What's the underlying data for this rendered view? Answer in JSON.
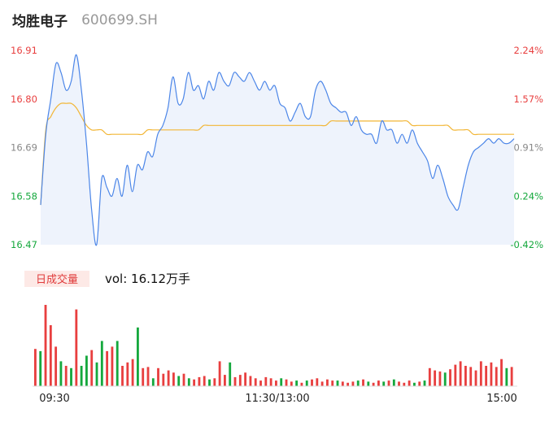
{
  "header": {
    "name": "均胜电子",
    "code": "600699.SH"
  },
  "colors": {
    "up": "#e83f3f",
    "down": "#15a83d",
    "flat": "#888888",
    "price_line": "#4c86e8",
    "avg_line": "#f2b636",
    "area": "#eef3fc"
  },
  "chart_data": {
    "type": "line",
    "price_axis": {
      "ticks": [
        16.91,
        16.8,
        16.69,
        16.58,
        16.47
      ],
      "tick_labels": [
        "16.91",
        "16.80",
        "16.69",
        "16.58",
        "16.47"
      ],
      "ylim": [
        16.47,
        16.91
      ]
    },
    "pct_axis": {
      "tick_labels": [
        "2.24%",
        "1.57%",
        "0.91%",
        "0.24%",
        "-0.42%"
      ]
    },
    "x_tick_labels": [
      "09:30",
      "11:30/13:00",
      "15:00"
    ],
    "volume_badge": "日成交量",
    "volume_text": "vol: 16.12万手",
    "series": [
      {
        "kind": "price",
        "values": [
          16.56,
          16.72,
          16.8,
          16.88,
          16.86,
          16.82,
          16.84,
          16.9,
          16.82,
          16.7,
          16.55,
          16.47,
          16.62,
          16.6,
          16.58,
          16.62,
          16.58,
          16.65,
          16.59,
          16.65,
          16.64,
          16.68,
          16.67,
          16.72,
          16.74,
          16.78,
          16.85,
          16.79,
          16.8,
          16.86,
          16.82,
          16.83,
          16.8,
          16.84,
          16.82,
          16.86,
          16.84,
          16.83,
          16.86,
          16.85,
          16.84,
          16.86,
          16.84,
          16.82,
          16.84,
          16.82,
          16.83,
          16.79,
          16.78,
          16.75,
          16.77,
          16.79,
          16.76,
          16.76,
          16.82,
          16.84,
          16.82,
          16.79,
          16.78,
          16.77,
          16.77,
          16.74,
          16.76,
          16.73,
          16.72,
          16.72,
          16.7,
          16.75,
          16.73,
          16.73,
          16.7,
          16.72,
          16.7,
          16.73,
          16.7,
          16.68,
          16.66,
          16.62,
          16.65,
          16.62,
          16.58,
          16.56,
          16.55,
          16.6,
          16.65,
          16.68,
          16.69,
          16.7,
          16.71,
          16.7,
          16.71,
          16.7,
          16.7,
          16.71
        ]
      },
      {
        "kind": "average",
        "values": [
          16.56,
          16.73,
          16.76,
          16.78,
          16.79,
          16.79,
          16.79,
          16.78,
          16.76,
          16.74,
          16.73,
          16.73,
          16.73,
          16.72,
          16.72,
          16.72,
          16.72,
          16.72,
          16.72,
          16.72,
          16.72,
          16.73,
          16.73,
          16.73,
          16.73,
          16.73,
          16.73,
          16.73,
          16.73,
          16.73,
          16.73,
          16.73,
          16.74,
          16.74,
          16.74,
          16.74,
          16.74,
          16.74,
          16.74,
          16.74,
          16.74,
          16.74,
          16.74,
          16.74,
          16.74,
          16.74,
          16.74,
          16.74,
          16.74,
          16.74,
          16.74,
          16.74,
          16.74,
          16.74,
          16.74,
          16.74,
          16.74,
          16.75,
          16.75,
          16.75,
          16.75,
          16.75,
          16.75,
          16.75,
          16.75,
          16.75,
          16.75,
          16.75,
          16.75,
          16.75,
          16.75,
          16.75,
          16.75,
          16.74,
          16.74,
          16.74,
          16.74,
          16.74,
          16.74,
          16.74,
          16.74,
          16.73,
          16.73,
          16.73,
          16.73,
          16.72,
          16.72,
          16.72,
          16.72,
          16.72,
          16.72,
          16.72,
          16.72,
          16.72
        ]
      }
    ],
    "volume_bars": [
      {
        "v": 33,
        "d": 1
      },
      {
        "v": 31,
        "d": -1
      },
      {
        "v": 72,
        "d": 1
      },
      {
        "v": 54,
        "d": 1
      },
      {
        "v": 35,
        "d": 1
      },
      {
        "v": 22,
        "d": -1
      },
      {
        "v": 18,
        "d": 1
      },
      {
        "v": 16,
        "d": -1
      },
      {
        "v": 68,
        "d": 1
      },
      {
        "v": 18,
        "d": -1
      },
      {
        "v": 27,
        "d": -1
      },
      {
        "v": 32,
        "d": 1
      },
      {
        "v": 21,
        "d": -1
      },
      {
        "v": 40,
        "d": -1
      },
      {
        "v": 31,
        "d": 1
      },
      {
        "v": 35,
        "d": 1
      },
      {
        "v": 40,
        "d": -1
      },
      {
        "v": 18,
        "d": 1
      },
      {
        "v": 21,
        "d": 1
      },
      {
        "v": 24,
        "d": 1
      },
      {
        "v": 52,
        "d": -1
      },
      {
        "v": 16,
        "d": 1
      },
      {
        "v": 17,
        "d": 1
      },
      {
        "v": 7,
        "d": -1
      },
      {
        "v": 16,
        "d": 1
      },
      {
        "v": 11,
        "d": 1
      },
      {
        "v": 14,
        "d": 1
      },
      {
        "v": 12,
        "d": 1
      },
      {
        "v": 9,
        "d": -1
      },
      {
        "v": 11,
        "d": 1
      },
      {
        "v": 7,
        "d": -1
      },
      {
        "v": 6,
        "d": 1
      },
      {
        "v": 8,
        "d": 1
      },
      {
        "v": 9,
        "d": 1
      },
      {
        "v": 6,
        "d": -1
      },
      {
        "v": 7,
        "d": 1
      },
      {
        "v": 22,
        "d": 1
      },
      {
        "v": 10,
        "d": 1
      },
      {
        "v": 21,
        "d": -1
      },
      {
        "v": 8,
        "d": 1
      },
      {
        "v": 10,
        "d": 1
      },
      {
        "v": 12,
        "d": 1
      },
      {
        "v": 9,
        "d": 1
      },
      {
        "v": 7,
        "d": 1
      },
      {
        "v": 5,
        "d": 1
      },
      {
        "v": 8,
        "d": 1
      },
      {
        "v": 7,
        "d": 1
      },
      {
        "v": 5,
        "d": 1
      },
      {
        "v": 7,
        "d": -1
      },
      {
        "v": 6,
        "d": 1
      },
      {
        "v": 4,
        "d": 1
      },
      {
        "v": 5,
        "d": -1
      },
      {
        "v": 3,
        "d": 1
      },
      {
        "v": 5,
        "d": -1
      },
      {
        "v": 6,
        "d": 1
      },
      {
        "v": 7,
        "d": 1
      },
      {
        "v": 4,
        "d": 1
      },
      {
        "v": 6,
        "d": 1
      },
      {
        "v": 5,
        "d": 1
      },
      {
        "v": 5,
        "d": -1
      },
      {
        "v": 4,
        "d": 1
      },
      {
        "v": 3,
        "d": 1
      },
      {
        "v": 4,
        "d": 1
      },
      {
        "v": 5,
        "d": -1
      },
      {
        "v": 6,
        "d": 1
      },
      {
        "v": 4,
        "d": -1
      },
      {
        "v": 3,
        "d": 1
      },
      {
        "v": 5,
        "d": 1
      },
      {
        "v": 4,
        "d": -1
      },
      {
        "v": 5,
        "d": 1
      },
      {
        "v": 6,
        "d": -1
      },
      {
        "v": 4,
        "d": 1
      },
      {
        "v": 3,
        "d": 1
      },
      {
        "v": 5,
        "d": 1
      },
      {
        "v": 3,
        "d": -1
      },
      {
        "v": 4,
        "d": 1
      },
      {
        "v": 5,
        "d": -1
      },
      {
        "v": 16,
        "d": 1
      },
      {
        "v": 14,
        "d": 1
      },
      {
        "v": 13,
        "d": 1
      },
      {
        "v": 12,
        "d": -1
      },
      {
        "v": 15,
        "d": 1
      },
      {
        "v": 19,
        "d": 1
      },
      {
        "v": 22,
        "d": 1
      },
      {
        "v": 18,
        "d": 1
      },
      {
        "v": 17,
        "d": 1
      },
      {
        "v": 14,
        "d": 1
      },
      {
        "v": 22,
        "d": 1
      },
      {
        "v": 18,
        "d": 1
      },
      {
        "v": 21,
        "d": 1
      },
      {
        "v": 17,
        "d": 1
      },
      {
        "v": 24,
        "d": 1
      },
      {
        "v": 16,
        "d": -1
      },
      {
        "v": 17,
        "d": 1
      }
    ]
  }
}
